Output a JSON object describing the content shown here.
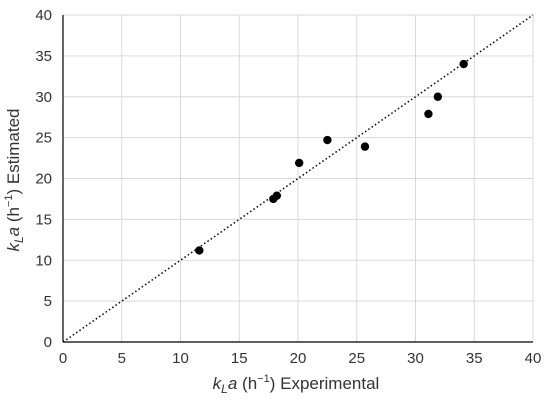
{
  "chart_data": {
    "type": "scatter",
    "title": "",
    "xlabel": {
      "k": "k",
      "sub": "L",
      "a": "a",
      "unit_open": " (h",
      "sup": "−1",
      "unit_close": ")",
      "rest": " Experimental"
    },
    "ylabel": {
      "k": "k",
      "sub": "L",
      "a": "a",
      "unit_open": " (h",
      "sup": "−1",
      "unit_close": ")",
      "rest": " Estimated"
    },
    "xlim": [
      0,
      40
    ],
    "ylim": [
      0,
      40
    ],
    "xticks": [
      0,
      5,
      10,
      15,
      20,
      25,
      30,
      35,
      40
    ],
    "yticks": [
      0,
      5,
      10,
      15,
      20,
      25,
      30,
      35,
      40
    ],
    "grid": true,
    "legend": "none",
    "reference_line": {
      "style": "dotted",
      "from": [
        0,
        0
      ],
      "to": [
        40,
        40
      ]
    },
    "colors": {
      "points": "#000000",
      "grid": "#d9d9d9",
      "axis": "#000000"
    },
    "points": [
      {
        "x": 11.6,
        "y": 11.2
      },
      {
        "x": 17.9,
        "y": 17.5
      },
      {
        "x": 18.2,
        "y": 17.9
      },
      {
        "x": 20.1,
        "y": 21.9
      },
      {
        "x": 22.5,
        "y": 24.7
      },
      {
        "x": 25.7,
        "y": 23.9
      },
      {
        "x": 31.1,
        "y": 27.9
      },
      {
        "x": 31.9,
        "y": 30.0
      },
      {
        "x": 34.1,
        "y": 34.0
      }
    ]
  }
}
